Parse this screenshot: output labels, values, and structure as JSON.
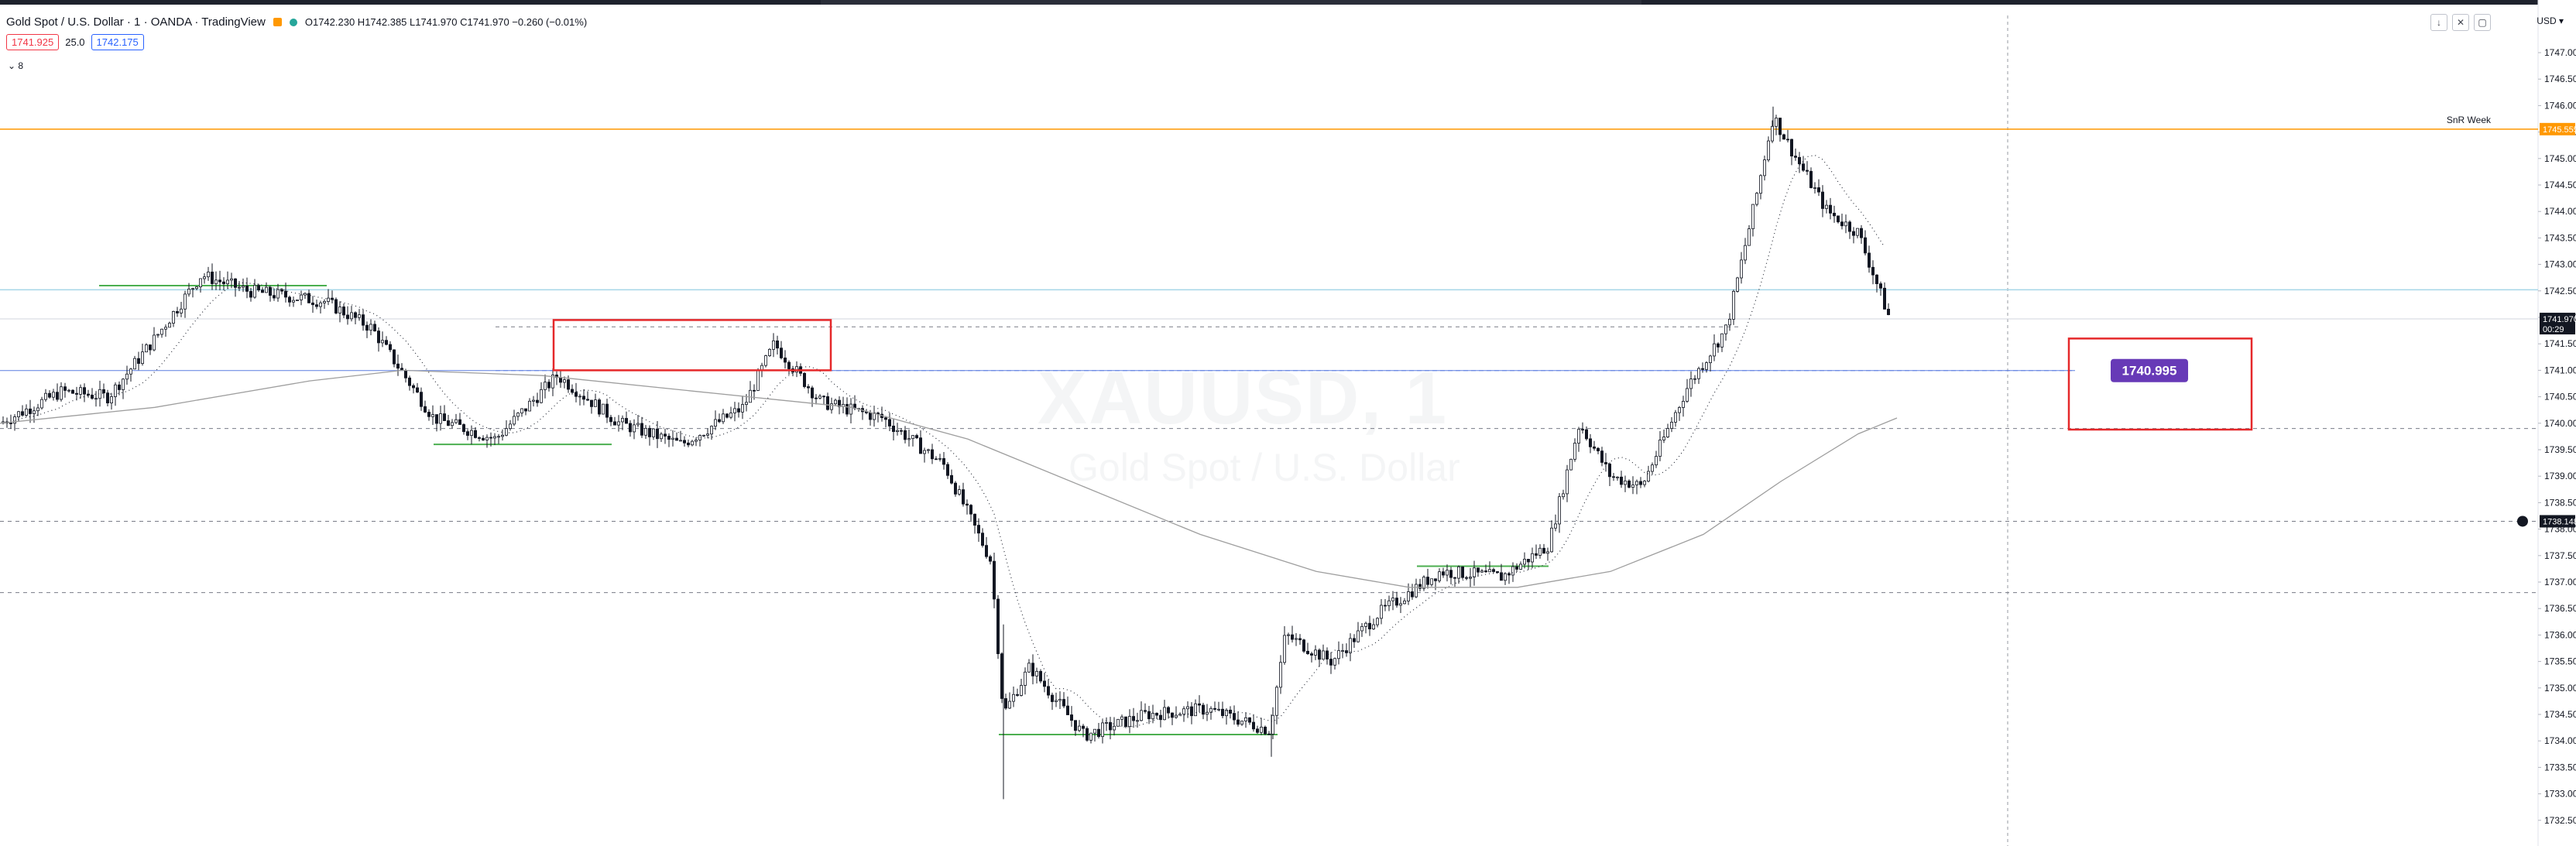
{
  "header": {
    "symbol_title": "Gold Spot / U.S. Dollar · 1 · OANDA · TradingView",
    "ohlc": "O1742.230  H1742.385  L1741.970  C1741.970  −0.260 (−0.01%)",
    "sell_price": "1741.925",
    "spread": "25.0",
    "buy_price": "1742.175",
    "indicators_toggle": "8",
    "currency": "USD"
  },
  "watermark": {
    "symbol": "XAUUSD, 1",
    "description": "Gold Spot / U.S. Dollar"
  },
  "price_axis": {
    "ticks": [
      "1747.000",
      "1746.500",
      "1746.000",
      "1745.500",
      "1745.000",
      "1744.500",
      "1744.000",
      "1743.500",
      "1743.000",
      "1742.500",
      "1742.000",
      "1741.500",
      "1741.000",
      "1740.500",
      "1740.000",
      "1739.500",
      "1739.000",
      "1738.500",
      "1738.000",
      "1737.500",
      "1737.000",
      "1736.500",
      "1736.000",
      "1735.500",
      "1735.000",
      "1734.500",
      "1734.000",
      "1733.500",
      "1733.000",
      "1732.500"
    ],
    "last_price": "1741.970",
    "countdown": "00:29",
    "snr_label": "SnR Week",
    "snr_price": "1745.555",
    "crosshair_price": "1738.148"
  },
  "annotations": {
    "price_label": "1740.995"
  },
  "colors": {
    "sell": "#f23645",
    "buy": "#2962ff",
    "snr": "#ff9800",
    "last_price_bg": "#131722",
    "label_bg": "#673ab7",
    "rect": "#e5282a",
    "level_green": "#4caf50",
    "level_blue": "#5b7de0"
  }
}
